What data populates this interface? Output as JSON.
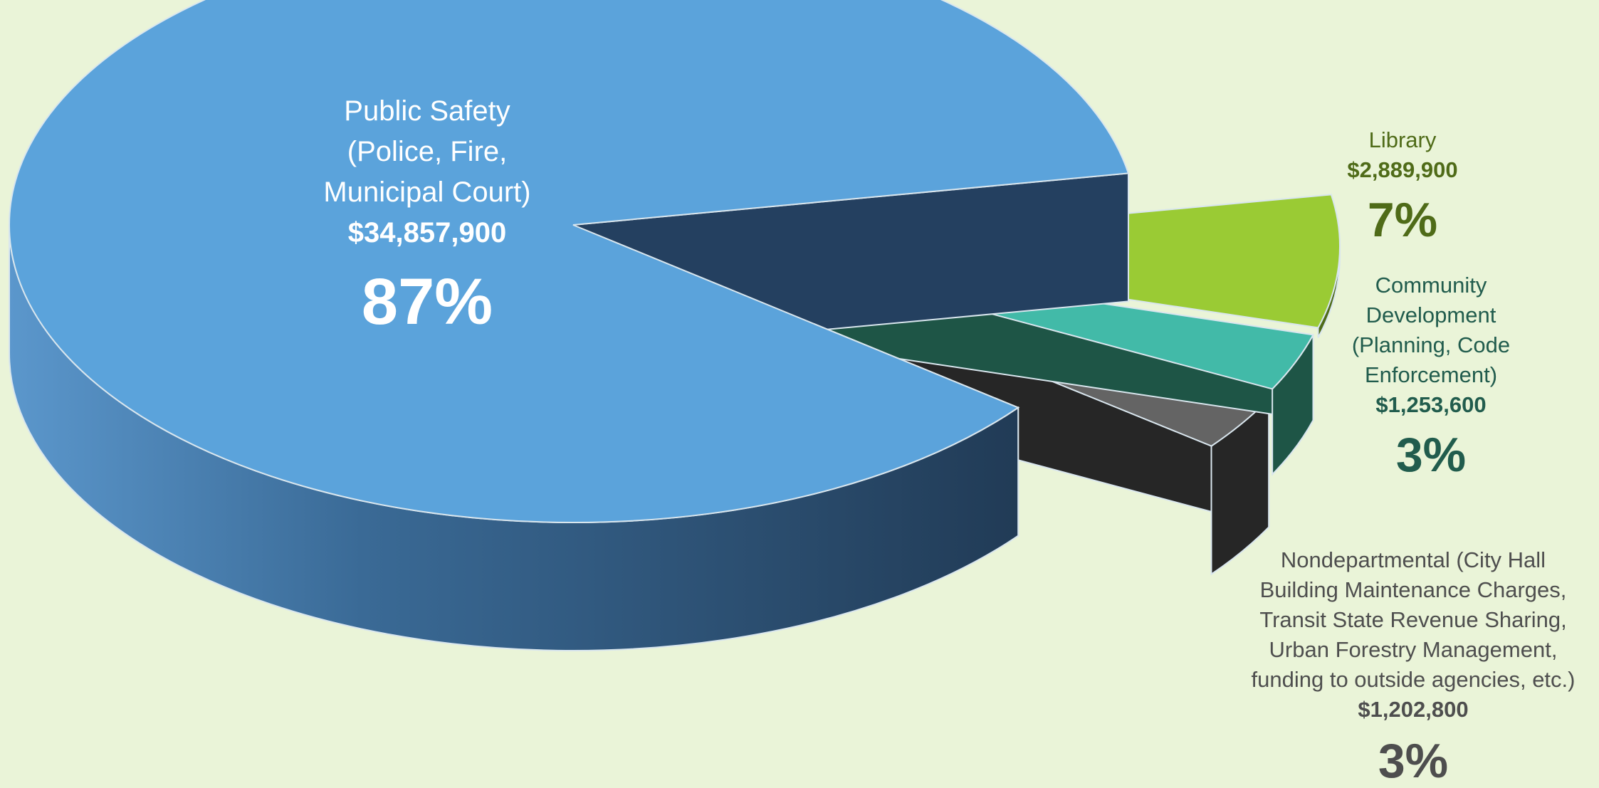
{
  "chart_data": {
    "type": "pie",
    "three_d": true,
    "legend": "none",
    "slices": [
      {
        "key": "safety",
        "label_lines": [
          "Public Safety",
          "(Police, Fire,",
          "Municipal Court)"
        ],
        "amount": "$34,857,900",
        "value": 34857900,
        "percent_label": "87%",
        "color": "#5ba3db",
        "side_color": "#244060",
        "text_color": "#ffffff"
      },
      {
        "key": "library",
        "label_lines": [
          "Library"
        ],
        "amount": "$2,889,900",
        "value": 2889900,
        "percent_label": "7%",
        "color": "#9acb34",
        "side_color": "#4f6b18",
        "text_color": "#4f6b18"
      },
      {
        "key": "community",
        "label_lines": [
          "Community",
          "Development",
          "(Planning, Code",
          "Enforcement)"
        ],
        "amount": "$1,253,600",
        "value": 1253600,
        "percent_label": "3%",
        "color": "#42baa8",
        "side_color": "#1e5546",
        "text_color": "#215c4d"
      },
      {
        "key": "nondept",
        "label_lines": [
          "Nondepartmental (City Hall",
          "Building Maintenance Charges,",
          "Transit State Revenue Sharing,",
          "Urban Forestry Management,",
          "funding to outside agencies, etc.)"
        ],
        "amount": "$1,202,800",
        "value": 1202800,
        "percent_label": "3%",
        "color": "#646464",
        "side_color": "#262626",
        "text_color": "#4e4e4e"
      }
    ]
  }
}
